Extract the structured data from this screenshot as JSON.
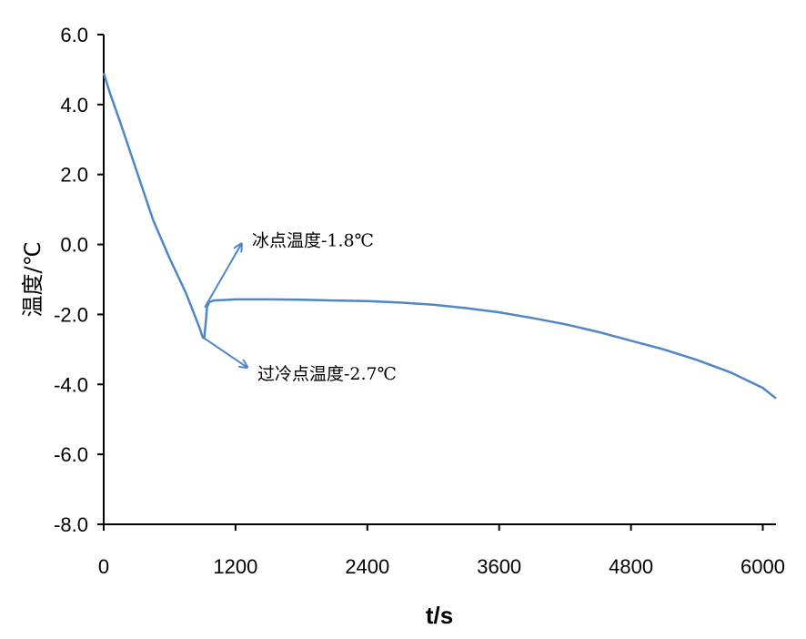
{
  "chart_data": {
    "type": "line",
    "xlabel": "t/s",
    "ylabel": "温度/℃",
    "xlim": [
      0,
      6120
    ],
    "ylim": [
      -8,
      6
    ],
    "xticks": [
      0,
      1200,
      2400,
      3600,
      4800,
      6000
    ],
    "xtick_labels": [
      "0",
      "1200",
      "2400",
      "3600",
      "4800",
      "6000"
    ],
    "yticks": [
      6,
      4,
      2,
      0,
      -2,
      -4,
      -6,
      -8
    ],
    "ytick_labels": [
      "6.0",
      "4.0",
      "2.0",
      "0.0",
      "-2.0",
      "-4.0",
      "-6.0",
      "-8.0"
    ],
    "grid": false,
    "line_color": "#4f86c6",
    "series": [
      {
        "x": [
          0,
          60,
          150,
          300,
          450,
          600,
          750,
          850,
          880,
          900,
          915,
          930,
          940,
          960,
          1000,
          1200,
          1500,
          1800,
          2100,
          2400,
          2700,
          3000,
          3300,
          3600,
          3900,
          4200,
          4500,
          4800,
          5100,
          5400,
          5700,
          6000,
          6120
        ],
        "y": [
          4.9,
          4.3,
          3.5,
          2.1,
          0.7,
          -0.4,
          -1.4,
          -2.2,
          -2.45,
          -2.65,
          -2.68,
          -2.2,
          -1.8,
          -1.65,
          -1.6,
          -1.57,
          -1.57,
          -1.58,
          -1.6,
          -1.62,
          -1.66,
          -1.72,
          -1.82,
          -1.94,
          -2.1,
          -2.28,
          -2.5,
          -2.75,
          -3.0,
          -3.3,
          -3.65,
          -4.1,
          -4.4
        ]
      }
    ],
    "annotations": [
      {
        "text": "冰点温度-1.8℃",
        "from": [
          920,
          -1.8
        ],
        "to": [
          1250,
          0.0
        ]
      },
      {
        "text": "过冷点温度-2.7℃",
        "from": [
          915,
          -2.68
        ],
        "to": [
          1300,
          -3.5
        ]
      }
    ]
  }
}
